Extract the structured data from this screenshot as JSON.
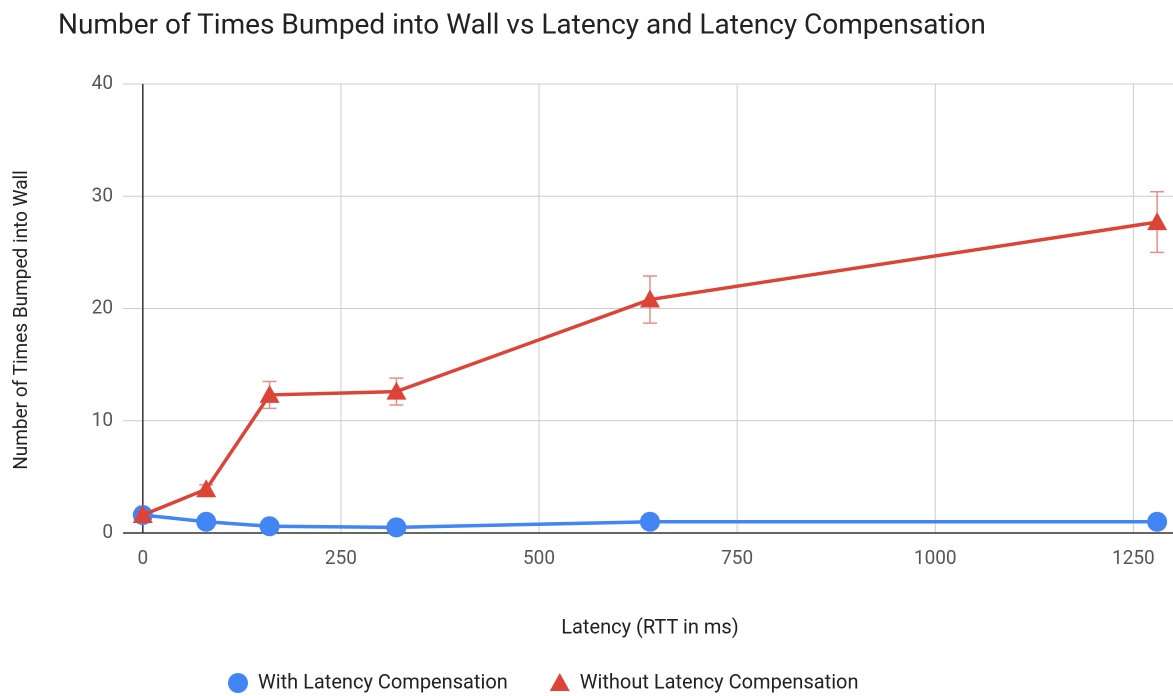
{
  "chart_data": {
    "type": "line",
    "title": "Number of Times Bumped into Wall vs Latency and Latency Compensation",
    "x_label": "Latency (RTT in ms)",
    "y_label": "Number of Times Bumped into Wall",
    "x": [
      0,
      80,
      160,
      320,
      640,
      1280
    ],
    "series": [
      {
        "name": "With Latency Compensation",
        "color": "#4285f4",
        "marker": "circle",
        "values": [
          1.6,
          1.0,
          0.6,
          0.5,
          1.0,
          1.0
        ]
      },
      {
        "name": "Without Latency Compensation",
        "color": "#db4437",
        "marker": "triangle",
        "values": [
          1.6,
          3.9,
          12.3,
          12.6,
          20.8,
          27.7
        ],
        "errors": [
          0.3,
          0.4,
          1.2,
          1.2,
          2.1,
          2.7
        ]
      }
    ],
    "xlim": [
      -25,
      1300
    ],
    "xticks": [
      0,
      250,
      500,
      750,
      1000,
      1250
    ],
    "ylim": [
      0,
      40
    ],
    "yticks": [
      0,
      10,
      20,
      30,
      40
    ],
    "grid": true,
    "legend": "bottom"
  }
}
